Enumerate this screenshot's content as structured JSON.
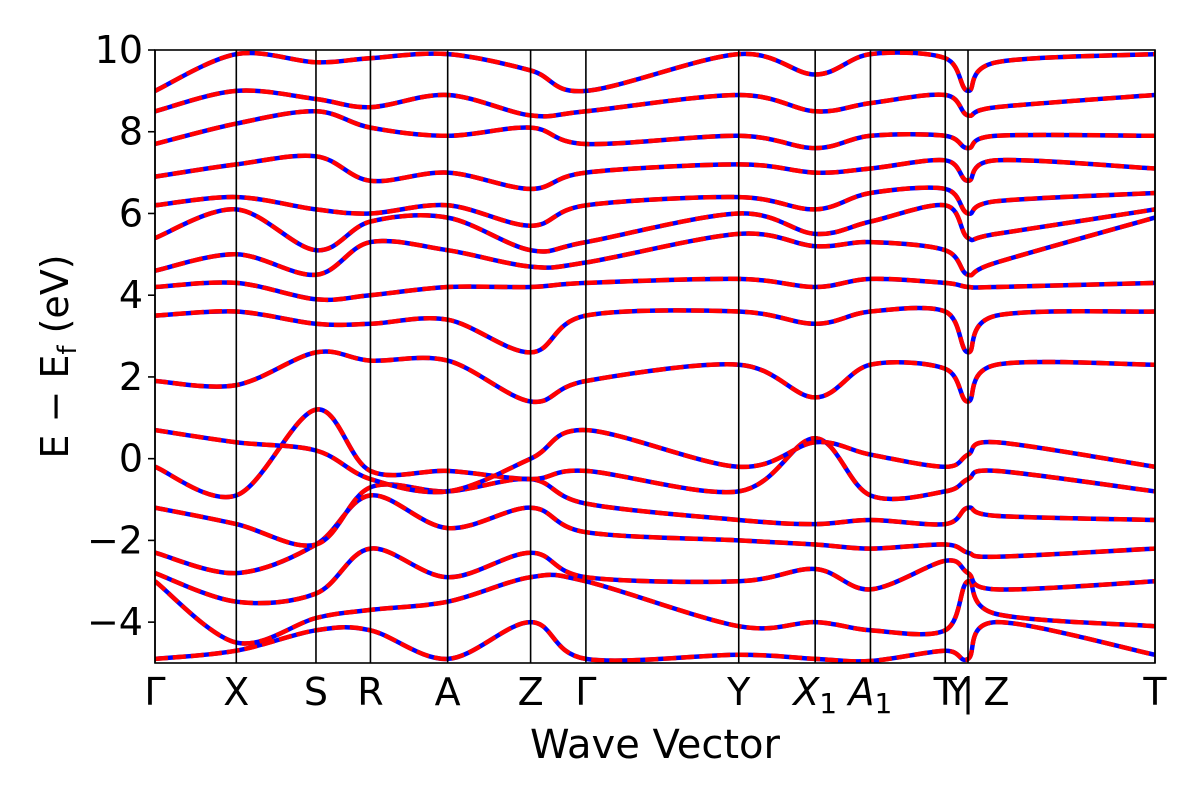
{
  "chart_data": {
    "type": "line",
    "xlabel": "Wave Vector",
    "ylabel": "E − E",
    "ylabel_sub": "f",
    "ylabel_unit": "(eV)",
    "ylim": [
      -5,
      10
    ],
    "yticks": [
      -4,
      -2,
      0,
      2,
      4,
      6,
      8,
      10
    ],
    "ytick_labels": [
      "−4",
      "−2",
      "0",
      "2",
      "4",
      "6",
      "8",
      "10"
    ],
    "xlim": [
      0,
      12.3
    ],
    "high_symmetry_points": [
      {
        "label": "Γ",
        "x": 0
      },
      {
        "label": "X",
        "x": 1.0
      },
      {
        "label": "S",
        "x": 1.98
      },
      {
        "label": "R",
        "x": 2.65
      },
      {
        "label": "A",
        "x": 3.6
      },
      {
        "label": "Z",
        "x": 4.62
      },
      {
        "label": "Γ",
        "x": 5.3
      },
      {
        "label": "Y",
        "x": 7.18
      },
      {
        "label": "X",
        "sub": "1",
        "x": 8.12
      },
      {
        "label": "A",
        "sub": "1",
        "x": 8.8
      },
      {
        "label": "T",
        "x": 9.72
      },
      {
        "label": "Y",
        "x": 9.87
      },
      {
        "label": "|",
        "x": 10.0
      },
      {
        "label": "Z",
        "x": 10.35
      },
      {
        "label": "T",
        "x": 12.3
      }
    ],
    "vlines": [
      0,
      1.0,
      1.98,
      2.65,
      3.6,
      4.62,
      5.3,
      7.18,
      8.12,
      8.8,
      9.72,
      10.0,
      12.3
    ],
    "grid": false,
    "series": [
      {
        "color": "#0000ff",
        "style": "solid"
      },
      {
        "color": "#ff0000",
        "style": "dashed"
      }
    ],
    "bands": [
      [
        {
          "x": 0,
          "y": -4.9
        },
        {
          "x": 1,
          "y": -4.7
        },
        {
          "x": 1.98,
          "y": -4.2
        },
        {
          "x": 2.65,
          "y": -4.2
        },
        {
          "x": 3.6,
          "y": -4.9
        },
        {
          "x": 4.62,
          "y": -4.0
        },
        {
          "x": 5.3,
          "y": -4.9
        },
        {
          "x": 7.18,
          "y": -4.8
        },
        {
          "x": 8.12,
          "y": -4.9
        },
        {
          "x": 8.8,
          "y": -4.95
        },
        {
          "x": 9.72,
          "y": -4.7
        },
        {
          "x": 10,
          "y": -4.9
        },
        {
          "x": 10.35,
          "y": -4.0
        },
        {
          "x": 12.3,
          "y": -4.8
        }
      ],
      [
        {
          "x": 0,
          "y": -3.0
        },
        {
          "x": 1,
          "y": -4.5
        },
        {
          "x": 1.98,
          "y": -3.9
        },
        {
          "x": 2.65,
          "y": -3.7
        },
        {
          "x": 3.6,
          "y": -3.5
        },
        {
          "x": 4.62,
          "y": -2.9
        },
        {
          "x": 5.3,
          "y": -3.0
        },
        {
          "x": 7.18,
          "y": -4.1
        },
        {
          "x": 8.12,
          "y": -4.0
        },
        {
          "x": 8.8,
          "y": -4.2
        },
        {
          "x": 9.72,
          "y": -4.2
        },
        {
          "x": 10,
          "y": -3.0
        },
        {
          "x": 10.35,
          "y": -3.8
        },
        {
          "x": 12.3,
          "y": -4.1
        }
      ],
      [
        {
          "x": 0,
          "y": -2.8
        },
        {
          "x": 1,
          "y": -3.5
        },
        {
          "x": 1.98,
          "y": -3.3
        },
        {
          "x": 2.65,
          "y": -2.2
        },
        {
          "x": 3.6,
          "y": -2.9
        },
        {
          "x": 4.62,
          "y": -2.3
        },
        {
          "x": 5.3,
          "y": -2.9
        },
        {
          "x": 7.18,
          "y": -3.0
        },
        {
          "x": 8.12,
          "y": -2.7
        },
        {
          "x": 8.8,
          "y": -3.2
        },
        {
          "x": 9.72,
          "y": -2.5
        },
        {
          "x": 10,
          "y": -2.8
        },
        {
          "x": 10.35,
          "y": -3.2
        },
        {
          "x": 12.3,
          "y": -3.0
        }
      ],
      [
        {
          "x": 0,
          "y": -2.3
        },
        {
          "x": 1,
          "y": -2.8
        },
        {
          "x": 1.98,
          "y": -2.1
        },
        {
          "x": 2.65,
          "y": -0.9
        },
        {
          "x": 3.6,
          "y": -1.7
        },
        {
          "x": 4.62,
          "y": -1.2
        },
        {
          "x": 5.3,
          "y": -1.8
        },
        {
          "x": 7.18,
          "y": -2.0
        },
        {
          "x": 8.12,
          "y": -2.1
        },
        {
          "x": 8.8,
          "y": -2.2
        },
        {
          "x": 9.72,
          "y": -2.1
        },
        {
          "x": 10,
          "y": -2.3
        },
        {
          "x": 10.35,
          "y": -2.4
        },
        {
          "x": 12.3,
          "y": -2.2
        }
      ],
      [
        {
          "x": 0,
          "y": -1.2
        },
        {
          "x": 1,
          "y": -1.6
        },
        {
          "x": 1.98,
          "y": -2.1
        },
        {
          "x": 2.65,
          "y": -0.7
        },
        {
          "x": 3.6,
          "y": -0.8
        },
        {
          "x": 4.62,
          "y": -0.5
        },
        {
          "x": 5.3,
          "y": -1.1
        },
        {
          "x": 7.18,
          "y": -1.5
        },
        {
          "x": 8.12,
          "y": -1.6
        },
        {
          "x": 8.8,
          "y": -1.5
        },
        {
          "x": 9.72,
          "y": -1.6
        },
        {
          "x": 10,
          "y": -1.2
        },
        {
          "x": 10.35,
          "y": -1.4
        },
        {
          "x": 12.3,
          "y": -1.5
        }
      ],
      [
        {
          "x": 0,
          "y": -0.2
        },
        {
          "x": 1,
          "y": -0.9
        },
        {
          "x": 1.98,
          "y": 1.2
        },
        {
          "x": 2.65,
          "y": -0.3
        },
        {
          "x": 3.6,
          "y": -0.3
        },
        {
          "x": 4.62,
          "y": -0.5
        },
        {
          "x": 5.3,
          "y": -0.3
        },
        {
          "x": 7.18,
          "y": -0.8
        },
        {
          "x": 8.12,
          "y": 0.5
        },
        {
          "x": 8.8,
          "y": -0.9
        },
        {
          "x": 9.72,
          "y": -0.8
        },
        {
          "x": 10,
          "y": -0.5
        },
        {
          "x": 10.35,
          "y": -0.3
        },
        {
          "x": 12.3,
          "y": -0.8
        }
      ],
      [
        {
          "x": 0,
          "y": 0.7
        },
        {
          "x": 1,
          "y": 0.4
        },
        {
          "x": 1.98,
          "y": 0.2
        },
        {
          "x": 2.65,
          "y": -0.5
        },
        {
          "x": 3.6,
          "y": -0.8
        },
        {
          "x": 4.62,
          "y": 0.0
        },
        {
          "x": 5.3,
          "y": 0.7
        },
        {
          "x": 7.18,
          "y": -0.2
        },
        {
          "x": 8.12,
          "y": 0.4
        },
        {
          "x": 8.8,
          "y": 0.1
        },
        {
          "x": 9.72,
          "y": -0.2
        },
        {
          "x": 10,
          "y": 0.1
        },
        {
          "x": 10.35,
          "y": 0.4
        },
        {
          "x": 12.3,
          "y": -0.2
        }
      ],
      [
        {
          "x": 0,
          "y": 1.9
        },
        {
          "x": 1,
          "y": 1.8
        },
        {
          "x": 1.98,
          "y": 2.6
        },
        {
          "x": 2.65,
          "y": 2.4
        },
        {
          "x": 3.6,
          "y": 2.4
        },
        {
          "x": 4.62,
          "y": 1.4
        },
        {
          "x": 5.3,
          "y": 1.9
        },
        {
          "x": 7.18,
          "y": 2.3
        },
        {
          "x": 8.12,
          "y": 1.5
        },
        {
          "x": 8.8,
          "y": 2.3
        },
        {
          "x": 9.72,
          "y": 2.2
        },
        {
          "x": 10,
          "y": 1.4
        },
        {
          "x": 10.35,
          "y": 2.3
        },
        {
          "x": 12.3,
          "y": 2.3
        }
      ],
      [
        {
          "x": 0,
          "y": 3.5
        },
        {
          "x": 1,
          "y": 3.6
        },
        {
          "x": 1.98,
          "y": 3.3
        },
        {
          "x": 2.65,
          "y": 3.3
        },
        {
          "x": 3.6,
          "y": 3.4
        },
        {
          "x": 4.62,
          "y": 2.6
        },
        {
          "x": 5.3,
          "y": 3.5
        },
        {
          "x": 7.18,
          "y": 3.6
        },
        {
          "x": 8.12,
          "y": 3.3
        },
        {
          "x": 8.8,
          "y": 3.6
        },
        {
          "x": 9.72,
          "y": 3.6
        },
        {
          "x": 10,
          "y": 2.6
        },
        {
          "x": 10.35,
          "y": 3.5
        },
        {
          "x": 12.3,
          "y": 3.6
        }
      ],
      [
        {
          "x": 0,
          "y": 4.2
        },
        {
          "x": 1,
          "y": 4.3
        },
        {
          "x": 1.98,
          "y": 3.9
        },
        {
          "x": 2.65,
          "y": 4.0
        },
        {
          "x": 3.6,
          "y": 4.2
        },
        {
          "x": 4.62,
          "y": 4.2
        },
        {
          "x": 5.3,
          "y": 4.3
        },
        {
          "x": 7.18,
          "y": 4.4
        },
        {
          "x": 8.12,
          "y": 4.2
        },
        {
          "x": 8.8,
          "y": 4.4
        },
        {
          "x": 9.72,
          "y": 4.3
        },
        {
          "x": 10,
          "y": 4.2
        },
        {
          "x": 10.35,
          "y": 4.2
        },
        {
          "x": 12.3,
          "y": 4.3
        }
      ],
      [
        {
          "x": 0,
          "y": 4.6
        },
        {
          "x": 1,
          "y": 5.0
        },
        {
          "x": 1.98,
          "y": 4.5
        },
        {
          "x": 2.65,
          "y": 5.3
        },
        {
          "x": 3.6,
          "y": 5.1
        },
        {
          "x": 4.62,
          "y": 4.7
        },
        {
          "x": 5.3,
          "y": 4.8
        },
        {
          "x": 7.18,
          "y": 5.5
        },
        {
          "x": 8.12,
          "y": 5.2
        },
        {
          "x": 8.8,
          "y": 5.3
        },
        {
          "x": 9.72,
          "y": 5.1
        },
        {
          "x": 10,
          "y": 4.5
        },
        {
          "x": 10.35,
          "y": 4.8
        },
        {
          "x": 12.3,
          "y": 5.9
        }
      ],
      [
        {
          "x": 0,
          "y": 5.4
        },
        {
          "x": 1,
          "y": 6.1
        },
        {
          "x": 1.98,
          "y": 5.1
        },
        {
          "x": 2.65,
          "y": 5.8
        },
        {
          "x": 3.6,
          "y": 5.9
        },
        {
          "x": 4.62,
          "y": 5.1
        },
        {
          "x": 5.3,
          "y": 5.3
        },
        {
          "x": 7.18,
          "y": 6.0
        },
        {
          "x": 8.12,
          "y": 5.5
        },
        {
          "x": 8.8,
          "y": 5.8
        },
        {
          "x": 9.72,
          "y": 6.2
        },
        {
          "x": 10,
          "y": 5.4
        },
        {
          "x": 10.35,
          "y": 5.5
        },
        {
          "x": 12.3,
          "y": 6.1
        }
      ],
      [
        {
          "x": 0,
          "y": 6.2
        },
        {
          "x": 1,
          "y": 6.4
        },
        {
          "x": 1.98,
          "y": 6.1
        },
        {
          "x": 2.65,
          "y": 6.0
        },
        {
          "x": 3.6,
          "y": 6.2
        },
        {
          "x": 4.62,
          "y": 5.7
        },
        {
          "x": 5.3,
          "y": 6.2
        },
        {
          "x": 7.18,
          "y": 6.4
        },
        {
          "x": 8.12,
          "y": 6.1
        },
        {
          "x": 8.8,
          "y": 6.5
        },
        {
          "x": 9.72,
          "y": 6.6
        },
        {
          "x": 10,
          "y": 6.0
        },
        {
          "x": 10.35,
          "y": 6.3
        },
        {
          "x": 12.3,
          "y": 6.5
        }
      ],
      [
        {
          "x": 0,
          "y": 6.9
        },
        {
          "x": 1,
          "y": 7.2
        },
        {
          "x": 1.98,
          "y": 7.4
        },
        {
          "x": 2.65,
          "y": 6.8
        },
        {
          "x": 3.6,
          "y": 7.0
        },
        {
          "x": 4.62,
          "y": 6.6
        },
        {
          "x": 5.3,
          "y": 7.0
        },
        {
          "x": 7.18,
          "y": 7.2
        },
        {
          "x": 8.12,
          "y": 7.0
        },
        {
          "x": 8.8,
          "y": 7.1
        },
        {
          "x": 9.72,
          "y": 7.3
        },
        {
          "x": 10,
          "y": 6.8
        },
        {
          "x": 10.35,
          "y": 7.3
        },
        {
          "x": 12.3,
          "y": 7.1
        }
      ],
      [
        {
          "x": 0,
          "y": 7.7
        },
        {
          "x": 1,
          "y": 8.2
        },
        {
          "x": 1.98,
          "y": 8.5
        },
        {
          "x": 2.65,
          "y": 8.1
        },
        {
          "x": 3.6,
          "y": 7.9
        },
        {
          "x": 4.62,
          "y": 8.1
        },
        {
          "x": 5.3,
          "y": 7.7
        },
        {
          "x": 7.18,
          "y": 7.9
        },
        {
          "x": 8.12,
          "y": 7.6
        },
        {
          "x": 8.8,
          "y": 7.9
        },
        {
          "x": 9.72,
          "y": 7.9
        },
        {
          "x": 10,
          "y": 7.6
        },
        {
          "x": 10.35,
          "y": 7.9
        },
        {
          "x": 12.3,
          "y": 7.9
        }
      ],
      [
        {
          "x": 0,
          "y": 8.5
        },
        {
          "x": 1,
          "y": 9.0
        },
        {
          "x": 1.98,
          "y": 8.8
        },
        {
          "x": 2.65,
          "y": 8.6
        },
        {
          "x": 3.6,
          "y": 8.9
        },
        {
          "x": 4.62,
          "y": 8.4
        },
        {
          "x": 5.3,
          "y": 8.5
        },
        {
          "x": 7.18,
          "y": 8.9
        },
        {
          "x": 8.12,
          "y": 8.5
        },
        {
          "x": 8.8,
          "y": 8.7
        },
        {
          "x": 9.72,
          "y": 8.9
        },
        {
          "x": 10,
          "y": 8.4
        },
        {
          "x": 10.35,
          "y": 8.6
        },
        {
          "x": 12.3,
          "y": 8.9
        }
      ],
      [
        {
          "x": 0,
          "y": 9.0
        },
        {
          "x": 1,
          "y": 9.9
        },
        {
          "x": 1.98,
          "y": 9.7
        },
        {
          "x": 2.65,
          "y": 9.8
        },
        {
          "x": 3.6,
          "y": 9.9
        },
        {
          "x": 4.62,
          "y": 9.5
        },
        {
          "x": 5.3,
          "y": 9.0
        },
        {
          "x": 7.18,
          "y": 9.9
        },
        {
          "x": 8.12,
          "y": 9.4
        },
        {
          "x": 8.8,
          "y": 9.9
        },
        {
          "x": 9.72,
          "y": 9.8
        },
        {
          "x": 10,
          "y": 9.0
        },
        {
          "x": 10.35,
          "y": 9.7
        },
        {
          "x": 12.3,
          "y": 9.9
        }
      ]
    ]
  }
}
